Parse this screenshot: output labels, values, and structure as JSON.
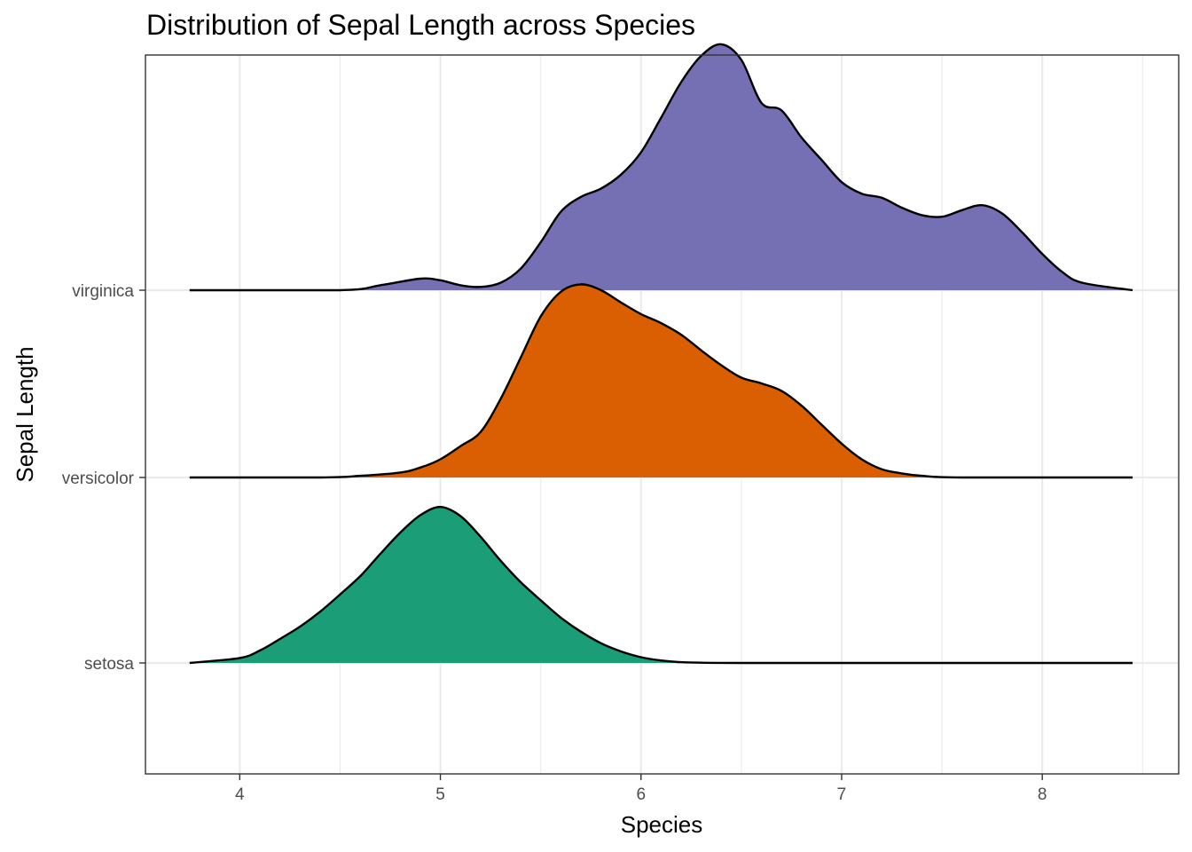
{
  "chart_data": {
    "type": "ridgeline",
    "title": "Distribution of Sepal Length across Species",
    "xlabel": "Species",
    "ylabel": "Sepal Length",
    "xlim": [
      3.53,
      8.68
    ],
    "x_ticks": [
      4,
      5,
      6,
      7,
      8
    ],
    "x_tick_labels": [
      "4",
      "5",
      "6",
      "7",
      "8"
    ],
    "grid": true,
    "series": [
      {
        "name": "setosa",
        "color": "#1B9E77",
        "x": [
          3.75,
          4.0,
          4.1,
          4.2,
          4.3,
          4.4,
          4.5,
          4.6,
          4.7,
          4.8,
          4.9,
          5.0,
          5.1,
          5.2,
          5.3,
          5.4,
          5.5,
          5.6,
          5.7,
          5.8,
          5.9,
          6.0,
          6.1,
          6.2,
          6.3,
          6.5,
          7.0,
          8.45
        ],
        "density": [
          0.0,
          0.06,
          0.15,
          0.29,
          0.44,
          0.62,
          0.83,
          1.05,
          1.32,
          1.58,
          1.79,
          1.89,
          1.78,
          1.53,
          1.24,
          0.98,
          0.76,
          0.55,
          0.38,
          0.24,
          0.14,
          0.07,
          0.03,
          0.01,
          0.003,
          0.0,
          0.0,
          0.0
        ]
      },
      {
        "name": "versicolor",
        "color": "#D95F02",
        "x": [
          3.75,
          4.4,
          4.6,
          4.8,
          4.9,
          5.0,
          5.1,
          5.2,
          5.3,
          5.4,
          5.5,
          5.6,
          5.7,
          5.8,
          5.9,
          6.0,
          6.1,
          6.2,
          6.3,
          6.4,
          6.5,
          6.6,
          6.7,
          6.8,
          6.9,
          7.0,
          7.1,
          7.2,
          7.3,
          7.4,
          7.6,
          8.45
        ],
        "density": [
          0.0,
          0.0,
          0.02,
          0.06,
          0.12,
          0.22,
          0.38,
          0.55,
          0.95,
          1.45,
          1.95,
          2.25,
          2.34,
          2.27,
          2.12,
          1.98,
          1.87,
          1.73,
          1.54,
          1.36,
          1.21,
          1.14,
          1.05,
          0.87,
          0.64,
          0.41,
          0.22,
          0.1,
          0.05,
          0.02,
          0.0,
          0.0
        ]
      },
      {
        "name": "virginica",
        "color": "#7570B3",
        "x": [
          3.75,
          4.5,
          4.7,
          4.9,
          5.0,
          5.1,
          5.2,
          5.3,
          5.4,
          5.5,
          5.6,
          5.7,
          5.8,
          5.9,
          6.0,
          6.1,
          6.2,
          6.3,
          6.4,
          6.5,
          6.6,
          6.7,
          6.8,
          6.9,
          7.0,
          7.1,
          7.2,
          7.3,
          7.4,
          7.5,
          7.6,
          7.7,
          7.8,
          7.9,
          8.0,
          8.1,
          8.2,
          8.45
        ],
        "density": [
          0.0,
          0.0,
          0.06,
          0.14,
          0.12,
          0.06,
          0.04,
          0.09,
          0.26,
          0.58,
          0.95,
          1.13,
          1.23,
          1.4,
          1.67,
          2.09,
          2.52,
          2.84,
          2.98,
          2.79,
          2.27,
          2.18,
          1.85,
          1.58,
          1.31,
          1.17,
          1.12,
          1.0,
          0.91,
          0.89,
          0.97,
          1.03,
          0.93,
          0.7,
          0.44,
          0.22,
          0.09,
          0.0
        ]
      }
    ]
  }
}
